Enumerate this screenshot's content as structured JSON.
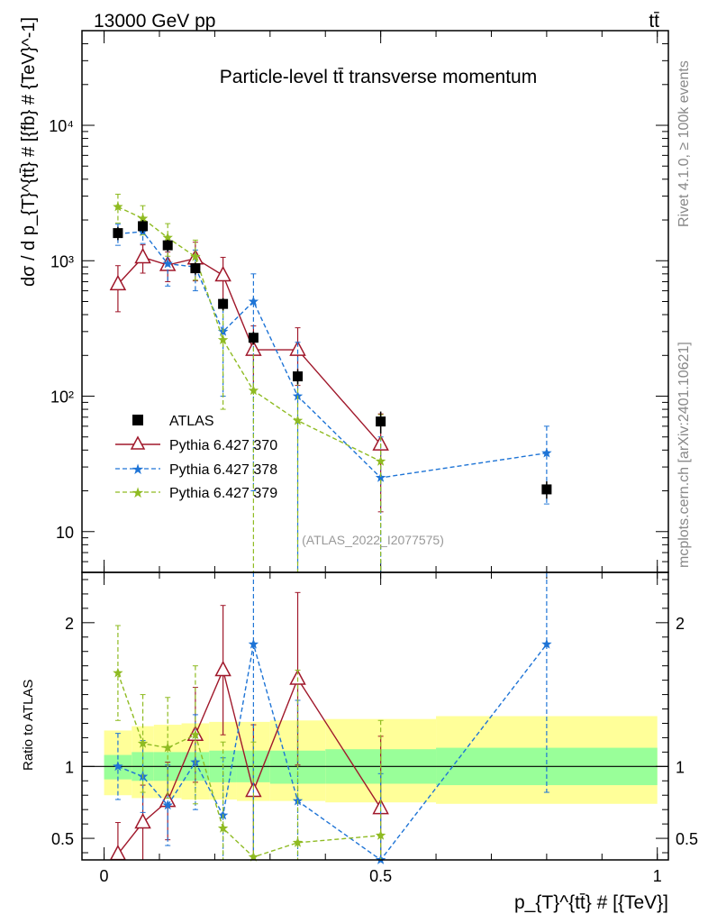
{
  "header": {
    "left": "13000 GeV pp",
    "right": "tt̄"
  },
  "side": {
    "rivet": "Rivet 4.1.0, ≥ 100k events",
    "url": "mcplots.cern.ch [arXiv:2401.10621]"
  },
  "chart_data": {
    "type": "scatter",
    "title": "Particle-level tt̄ transverse momentum",
    "watermark": "(ATLAS_2022_I2077575)",
    "xlabel": "p_{T}^{tt̄} # [{TeV}]",
    "ylabel": "dσ / d p_{T}^{tt̄} # [{fb} # {TeV}^-1]",
    "ratio_ylabel": "Ratio to ATLAS",
    "xlim": [
      -0.04,
      1.02
    ],
    "ylim_log": [
      5,
      50000
    ],
    "ratio_ylim": [
      0.35,
      2.35
    ],
    "x_ticks": [
      {
        "v": 0,
        "label": "0"
      },
      {
        "v": 0.5,
        "label": "0.5"
      },
      {
        "v": 1,
        "label": "1"
      }
    ],
    "y_ticks": [
      {
        "v": 10,
        "label": "10"
      },
      {
        "v": 100,
        "label": "10²"
      },
      {
        "v": 1000,
        "label": "10³"
      },
      {
        "v": 10000,
        "label": "10⁴"
      }
    ],
    "ratio_ticks": [
      {
        "v": 0.5,
        "label": "0.5"
      },
      {
        "v": 1,
        "label": "1"
      },
      {
        "v": 2,
        "label": "2"
      }
    ],
    "x": [
      0.025,
      0.07,
      0.115,
      0.165,
      0.215,
      0.27,
      0.35,
      0.5,
      0.8
    ],
    "data": {
      "name": "ATLAS",
      "color": "#000000",
      "values": [
        1600,
        1800,
        1300,
        880,
        480,
        270,
        140,
        65,
        20.5
      ],
      "err_up": [
        180,
        200,
        130,
        90,
        50,
        30,
        18,
        12,
        3
      ],
      "err_down": [
        180,
        200,
        130,
        90,
        50,
        30,
        18,
        12,
        3
      ]
    },
    "bands": {
      "inner_color": "#99ff99",
      "outer_color": "#ffff99",
      "x_edges": [
        0,
        0.05,
        0.09,
        0.14,
        0.19,
        0.24,
        0.3,
        0.4,
        0.6,
        1.0
      ],
      "inner_up": [
        1.08,
        1.1,
        1.1,
        1.1,
        1.11,
        1.11,
        1.11,
        1.12,
        1.13
      ],
      "inner_down": [
        0.91,
        0.9,
        0.9,
        0.9,
        0.89,
        0.89,
        0.88,
        0.88,
        0.87
      ],
      "outer_up": [
        1.25,
        1.28,
        1.29,
        1.3,
        1.31,
        1.31,
        1.32,
        1.33,
        1.35
      ],
      "outer_down": [
        0.8,
        0.78,
        0.78,
        0.77,
        0.77,
        0.76,
        0.76,
        0.75,
        0.74
      ]
    },
    "series": [
      {
        "name": "Pythia 6.427 370",
        "color": "#a0182b",
        "dashed": false,
        "marker": "triangle",
        "x": [
          0.025,
          0.07,
          0.115,
          0.165,
          0.215,
          0.27,
          0.35,
          0.5
        ],
        "values": [
          670,
          1060,
          930,
          1040,
          780,
          220,
          220,
          44
        ],
        "err_up": [
          250,
          250,
          230,
          330,
          280,
          110,
          100,
          30
        ],
        "err_down": [
          250,
          250,
          230,
          330,
          280,
          110,
          100,
          30
        ],
        "ratio": [
          0.39,
          0.61,
          0.76,
          1.22,
          1.67,
          0.83,
          1.61,
          0.71
        ],
        "ratio_err_up": [
          0.22,
          0.26,
          0.27,
          0.33,
          0.45,
          0.46,
          0.6,
          0.5
        ],
        "ratio_err_down": [
          0.22,
          0.26,
          0.27,
          0.33,
          0.45,
          0.46,
          0.6,
          0.5
        ]
      },
      {
        "name": "Pythia 6.427 378",
        "color": "#1e74d6",
        "dashed": true,
        "marker": "star",
        "x": [
          0.025,
          0.07,
          0.115,
          0.165,
          0.215,
          0.27,
          0.35,
          0.5,
          0.8
        ],
        "values": [
          1580,
          1640,
          950,
          900,
          300,
          500,
          100,
          25,
          38
        ],
        "err_up": [
          280,
          300,
          300,
          300,
          200,
          300,
          150,
          25,
          22
        ],
        "err_down": [
          280,
          300,
          300,
          300,
          200,
          480,
          96,
          22,
          22
        ],
        "ratio": [
          1.0,
          0.93,
          0.73,
          1.03,
          0.66,
          1.85,
          0.76,
          0.35,
          1.85
        ],
        "ratio_err_up": [
          0.23,
          0.25,
          0.28,
          0.33,
          0.4,
          1.0,
          0.7,
          0.6,
          0.5
        ],
        "ratio_err_down": [
          0.23,
          0.25,
          0.28,
          0.33,
          0.4,
          1.5,
          0.5,
          0.3,
          1.03
        ]
      },
      {
        "name": "Pythia 6.427 379",
        "color": "#8fbb22",
        "dashed": true,
        "marker": "star",
        "x": [
          0.025,
          0.07,
          0.115,
          0.165,
          0.215,
          0.27,
          0.35,
          0.5
        ],
        "values": [
          2500,
          2050,
          1480,
          1070,
          260,
          110,
          66,
          33
        ],
        "err_up": [
          600,
          500,
          400,
          350,
          200,
          150,
          80,
          40
        ],
        "err_down": [
          600,
          500,
          400,
          350,
          180,
          105,
          62,
          30
        ],
        "ratio": [
          1.65,
          1.16,
          1.13,
          1.22,
          0.57,
          0.37,
          0.47,
          0.52
        ],
        "ratio_err_up": [
          0.33,
          0.34,
          0.35,
          0.48,
          0.6,
          0.8,
          1.2,
          0.8
        ],
        "ratio_err_down": [
          0.33,
          0.34,
          0.35,
          0.48,
          0.4,
          0.35,
          0.45,
          0.45
        ]
      }
    ]
  }
}
